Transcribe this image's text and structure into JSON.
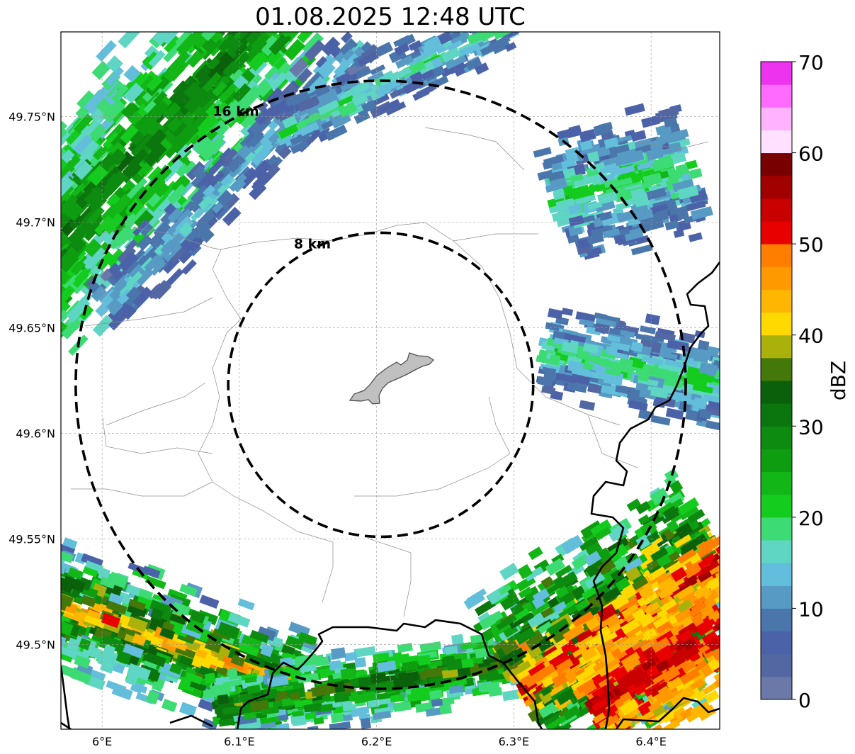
{
  "title": "01.08.2025 12:48 UTC",
  "map": {
    "lon_range": [
      5.97,
      6.45
    ],
    "lat_range": [
      49.46,
      49.79
    ],
    "lat_ticks": [
      {
        "value": 49.75,
        "label": "49.75°N"
      },
      {
        "value": 49.7,
        "label": "49.7°N"
      },
      {
        "value": 49.65,
        "label": "49.65°N"
      },
      {
        "value": 49.6,
        "label": "49.6°N"
      },
      {
        "value": 49.55,
        "label": "49.55°N"
      },
      {
        "value": 49.5,
        "label": "49.5°N"
      }
    ],
    "lon_ticks": [
      {
        "value": 6.0,
        "label": "6°E"
      },
      {
        "value": 6.1,
        "label": "6.1°E"
      },
      {
        "value": 6.2,
        "label": "6.2°E"
      },
      {
        "value": 6.3,
        "label": "6.3°E"
      },
      {
        "value": 6.4,
        "label": "6.4°E"
      }
    ],
    "gridlines": true,
    "center": {
      "lon": 6.203,
      "lat": 49.623
    },
    "range_rings": [
      {
        "radius_km": 8,
        "label": "8 km"
      },
      {
        "radius_km": 16,
        "label": "16 km"
      }
    ],
    "city_outline_color": "#c0c0c0"
  },
  "colorbar": {
    "label": "dBZ",
    "min": 0,
    "max": 70,
    "ticks": [
      {
        "value": 0,
        "label": "0"
      },
      {
        "value": 10,
        "label": "10"
      },
      {
        "value": 20,
        "label": "20"
      },
      {
        "value": 30,
        "label": "30"
      },
      {
        "value": 40,
        "label": "40"
      },
      {
        "value": 50,
        "label": "50"
      },
      {
        "value": 60,
        "label": "60"
      },
      {
        "value": 70,
        "label": "70"
      }
    ],
    "colors": [
      "#6b79a8",
      "#5368a3",
      "#4b62a8",
      "#4a76ac",
      "#579ac4",
      "#62bedb",
      "#5fd6c4",
      "#3ddb73",
      "#13cc1d",
      "#12b717",
      "#0e9d10",
      "#0d8b10",
      "#0c760e",
      "#0b610b",
      "#44780a",
      "#a9b10a",
      "#ffd900",
      "#ffb600",
      "#ff9900",
      "#ff7e00",
      "#e80000",
      "#c90000",
      "#a00000",
      "#780000",
      "#ffe0ff",
      "#ffb2ff",
      "#ff6bff",
      "#ee33ee"
    ]
  }
}
